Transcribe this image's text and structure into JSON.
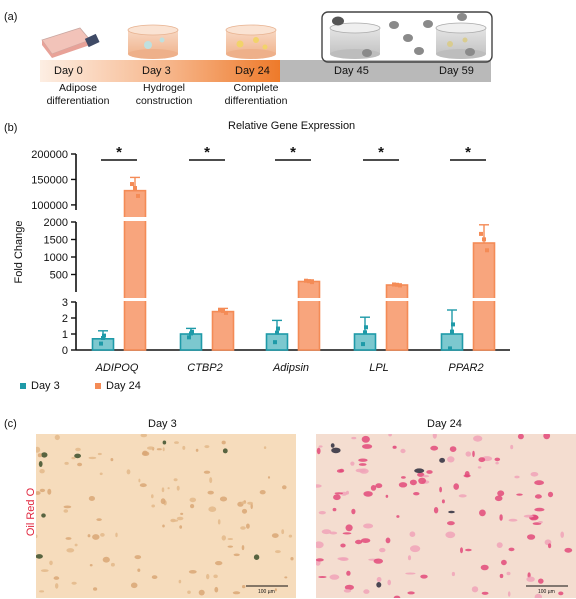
{
  "panel_labels": {
    "a": "(a)",
    "b": "(b)",
    "c": "(c)"
  },
  "timeline": {
    "days": [
      "Day 0",
      "Day 3",
      "Day 24",
      "Day 45",
      "Day 59"
    ],
    "descriptions": [
      [
        "Adipose",
        "differentiation"
      ],
      [
        "Hydrogel",
        "construction"
      ],
      [
        "Complete",
        "differentiation"
      ]
    ],
    "colors": {
      "gradient_start": "#fde9dc",
      "gradient_end": "#ef7d2c",
      "gray": "#b7b7b7"
    }
  },
  "legend": {
    "day3": "Day 3",
    "day24": "Day 24"
  },
  "micrographs": {
    "titles": [
      "Day 3",
      "Day 24"
    ],
    "stain_label": "Oil Red O",
    "scale_bar": "100 µm"
  },
  "chart_data": {
    "type": "bar",
    "title": "Relative Gene Expression",
    "ylabel": "Fold Change",
    "xlabel": "",
    "categories": [
      "ADIPOQ",
      "CTBP2",
      "Adipsin",
      "LPL",
      "PPAR2"
    ],
    "series": [
      {
        "name": "Day 3",
        "color": "#1e9aa8",
        "values": [
          0.7,
          1.0,
          1.0,
          1.0,
          1.0
        ],
        "errors": [
          0.5,
          0.35,
          0.85,
          1.05,
          1.5
        ]
      },
      {
        "name": "Day 24",
        "color": "#f48b56",
        "values": [
          128000,
          2.4,
          300,
          200,
          1400
        ],
        "errors": [
          26000,
          0.2,
          45,
          30,
          520
        ]
      }
    ],
    "broken_axis": {
      "segments": [
        {
          "range": [
            0,
            3
          ],
          "ticks": [
            0,
            1,
            2,
            3
          ]
        },
        {
          "range": [
            0,
            2000
          ],
          "ticks": [
            500,
            1000,
            1500,
            2000
          ]
        },
        {
          "range": [
            90000,
            200000
          ],
          "ticks": [
            100000,
            150000,
            200000
          ]
        }
      ]
    },
    "significance": [
      "*",
      "*",
      "*",
      "*",
      "*"
    ],
    "legend_position": "bottom-left",
    "grid": false
  }
}
